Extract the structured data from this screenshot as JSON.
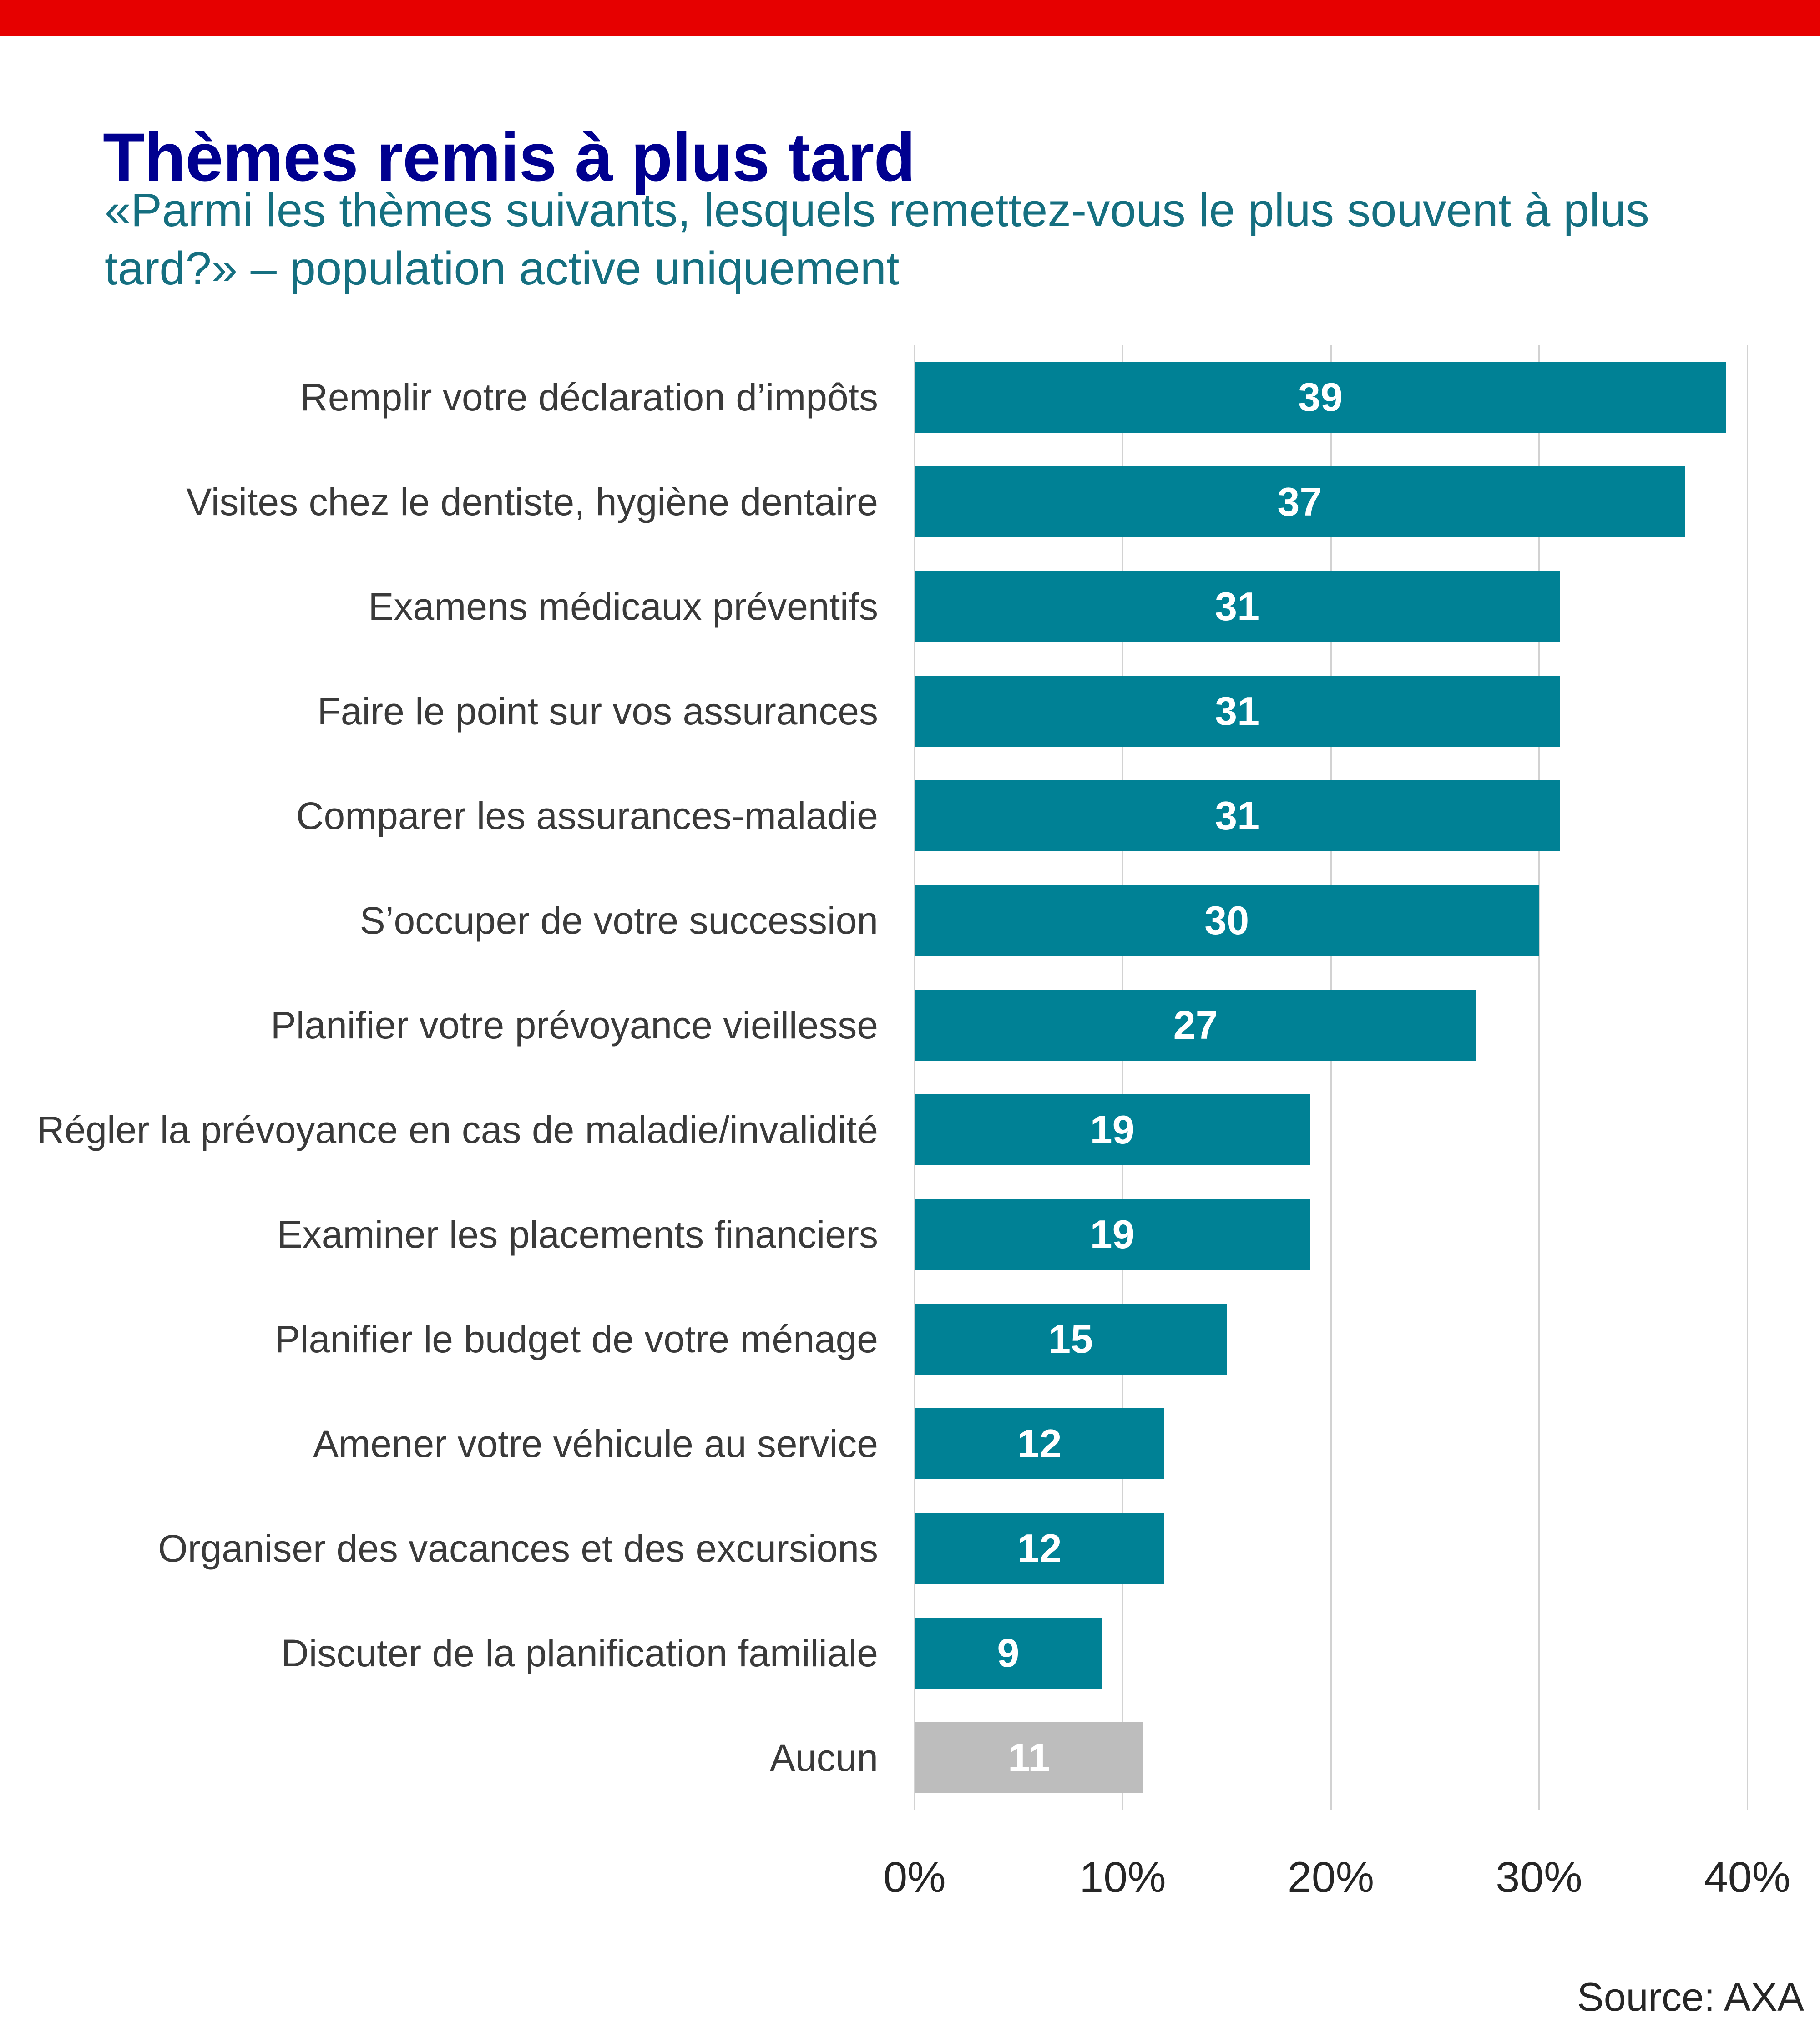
{
  "page": {
    "background": "#FFFFFF",
    "accent_bar_color": "#E60000"
  },
  "header": {
    "title": "Thèmes remis à plus tard",
    "title_color": "#00008F",
    "subtitle_lines": [
      "«Parmi les thèmes suivants, lesquels remettez-vous le plus souvent à plus",
      "tard?» – population active uniquement"
    ],
    "subtitle_color": "#156F80"
  },
  "chart_data": {
    "type": "bar",
    "orientation": "horizontal",
    "title": "Thèmes remis à plus tard",
    "subtitle": "«Parmi les thèmes suivants, lesquels remettez-vous le plus souvent à plus tard?» – population active uniquement",
    "categories": [
      "Remplir votre déclaration d’impôts",
      "Visites chez le dentiste, hygiène dentaire",
      "Examens médicaux préventifs",
      "Faire le point sur vos assurances",
      "Comparer les assurances-maladie",
      "S’occuper de votre succession",
      "Planifier votre prévoyance vieillesse",
      "Régler la prévoyance en cas de maladie/invalidité",
      "Examiner les placements financiers",
      "Planifier le budget de votre ménage",
      "Amener votre véhicule au service",
      "Organiser des vacances et des excursions",
      "Discuter de la planification familiale",
      "Aucun"
    ],
    "values": [
      39,
      37,
      31,
      31,
      31,
      30,
      27,
      19,
      19,
      15,
      12,
      12,
      9,
      11
    ],
    "bar_colors": [
      "#008195",
      "#008195",
      "#008195",
      "#008195",
      "#008195",
      "#008195",
      "#008195",
      "#008195",
      "#008195",
      "#008195",
      "#008195",
      "#008195",
      "#008195",
      "#BDBDBD"
    ],
    "default_bar_color": "#008195",
    "highlight_bar_color": "#BDBDBD",
    "value_label_color": "#FFFFFF",
    "xlim": [
      0,
      40
    ],
    "x_tick_labels": [
      "0%",
      "10%",
      "20%",
      "30%",
      "40%"
    ],
    "grid": "vertical",
    "gridline_color": "#D2D2D2",
    "legend": "none"
  },
  "footer": {
    "source": "Source: AXA"
  }
}
